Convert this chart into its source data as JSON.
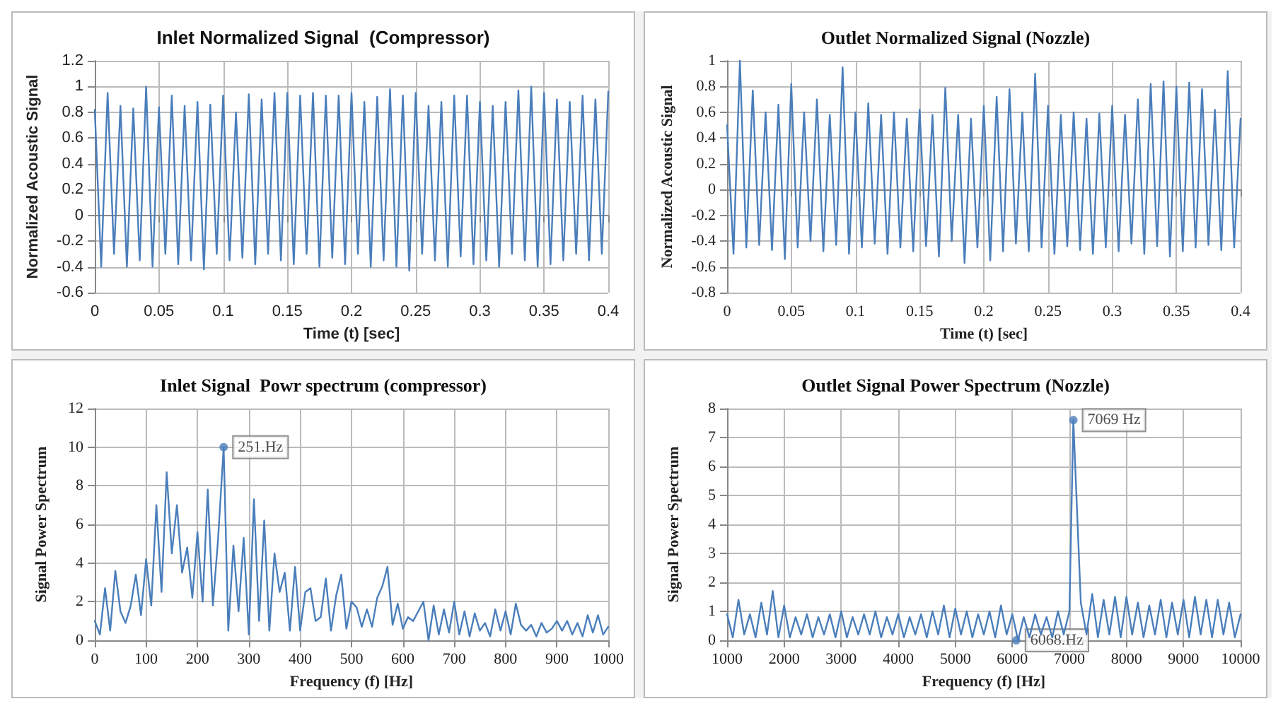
{
  "chart_data": [
    {
      "type": "line",
      "title": "Inlet Normalized Signal  (Compressor)",
      "xlabel": "Time (t) [sec]",
      "ylabel": "Normalized Acoustic Signal",
      "xlim": [
        0,
        0.4
      ],
      "xticks": [
        0,
        0.05,
        0.1,
        0.15,
        0.2,
        0.25,
        0.3,
        0.35,
        0.4
      ],
      "ylim": [
        -0.6,
        1.2
      ],
      "yticks": [
        -0.6,
        -0.4,
        -0.2,
        0,
        0.2,
        0.4,
        0.6,
        0.8,
        1,
        1.2
      ],
      "grid": true,
      "x": [
        0,
        0.005,
        0.01,
        0.015,
        0.02,
        0.025,
        0.03,
        0.035,
        0.04,
        0.045,
        0.05,
        0.055,
        0.06,
        0.065,
        0.07,
        0.075,
        0.08,
        0.085,
        0.09,
        0.095,
        0.1,
        0.105,
        0.11,
        0.115,
        0.12,
        0.125,
        0.13,
        0.135,
        0.14,
        0.145,
        0.15,
        0.155,
        0.16,
        0.165,
        0.17,
        0.175,
        0.18,
        0.185,
        0.19,
        0.195,
        0.2,
        0.205,
        0.21,
        0.215,
        0.22,
        0.225,
        0.23,
        0.235,
        0.24,
        0.245,
        0.25,
        0.255,
        0.26,
        0.265,
        0.27,
        0.275,
        0.28,
        0.285,
        0.29,
        0.295,
        0.3,
        0.305,
        0.31,
        0.315,
        0.32,
        0.325,
        0.33,
        0.335,
        0.34,
        0.345,
        0.35,
        0.355,
        0.36,
        0.365,
        0.37,
        0.375,
        0.38,
        0.385,
        0.39,
        0.395,
        0.4
      ],
      "series": [
        {
          "color": "#4a7ebb",
          "values": [
            0.82,
            -0.4,
            0.95,
            -0.3,
            0.85,
            -0.4,
            0.83,
            -0.35,
            1.0,
            -0.4,
            0.84,
            -0.3,
            0.93,
            -0.38,
            0.85,
            -0.35,
            0.88,
            -0.42,
            0.86,
            -0.3,
            0.93,
            -0.35,
            0.8,
            -0.33,
            0.94,
            -0.38,
            0.9,
            -0.3,
            0.95,
            -0.35,
            0.95,
            -0.38,
            0.93,
            -0.3,
            0.95,
            -0.4,
            0.93,
            -0.33,
            0.93,
            -0.38,
            0.95,
            -0.3,
            0.88,
            -0.4,
            0.92,
            -0.35,
            0.98,
            -0.4,
            0.93,
            -0.43,
            0.95,
            -0.3,
            0.85,
            -0.35,
            0.88,
            -0.4,
            0.93,
            -0.32,
            0.93,
            -0.38,
            0.88,
            -0.35,
            0.85,
            -0.4,
            0.88,
            -0.3,
            0.97,
            -0.35,
            1.0,
            -0.4,
            0.95,
            -0.38,
            0.9,
            -0.35,
            0.88,
            -0.3,
            0.93,
            -0.35,
            0.9,
            -0.3,
            0.96
          ]
        }
      ]
    },
    {
      "type": "line",
      "title": "Outlet Normalized Signal (Nozzle)",
      "xlabel": "Time (t) [sec]",
      "ylabel": "Normalized Acoustic Signal",
      "xlim": [
        0,
        0.4
      ],
      "xticks": [
        0,
        0.05,
        0.1,
        0.15,
        0.2,
        0.25,
        0.3,
        0.35,
        0.4
      ],
      "ylim": [
        -0.8,
        1
      ],
      "yticks": [
        -0.8,
        -0.6,
        -0.4,
        -0.2,
        0,
        0.2,
        0.4,
        0.6,
        0.8,
        1
      ],
      "grid": true,
      "x": [
        0,
        0.005,
        0.01,
        0.015,
        0.02,
        0.025,
        0.03,
        0.035,
        0.04,
        0.045,
        0.05,
        0.055,
        0.06,
        0.065,
        0.07,
        0.075,
        0.08,
        0.085,
        0.09,
        0.095,
        0.1,
        0.105,
        0.11,
        0.115,
        0.12,
        0.125,
        0.13,
        0.135,
        0.14,
        0.145,
        0.15,
        0.155,
        0.16,
        0.165,
        0.17,
        0.175,
        0.18,
        0.185,
        0.19,
        0.195,
        0.2,
        0.205,
        0.21,
        0.215,
        0.22,
        0.225,
        0.23,
        0.235,
        0.24,
        0.245,
        0.25,
        0.255,
        0.26,
        0.265,
        0.27,
        0.275,
        0.28,
        0.285,
        0.29,
        0.295,
        0.3,
        0.305,
        0.31,
        0.315,
        0.32,
        0.325,
        0.33,
        0.335,
        0.34,
        0.345,
        0.35,
        0.355,
        0.36,
        0.365,
        0.37,
        0.375,
        0.38,
        0.385,
        0.39,
        0.395,
        0.4
      ],
      "series": [
        {
          "color": "#4a7ebb",
          "values": [
            0.5,
            -0.5,
            1.0,
            -0.45,
            0.77,
            -0.43,
            0.6,
            -0.47,
            0.66,
            -0.54,
            0.82,
            -0.45,
            0.6,
            -0.4,
            0.7,
            -0.48,
            0.58,
            -0.43,
            0.95,
            -0.5,
            0.6,
            -0.45,
            0.67,
            -0.42,
            0.58,
            -0.5,
            0.6,
            -0.45,
            0.55,
            -0.48,
            0.62,
            -0.44,
            0.58,
            -0.52,
            0.79,
            -0.4,
            0.58,
            -0.57,
            0.55,
            -0.45,
            0.65,
            -0.55,
            0.72,
            -0.48,
            0.78,
            -0.42,
            0.6,
            -0.48,
            0.9,
            -0.45,
            0.65,
            -0.5,
            0.58,
            -0.44,
            0.6,
            -0.47,
            0.55,
            -0.5,
            0.59,
            -0.45,
            0.65,
            -0.48,
            0.58,
            -0.42,
            0.7,
            -0.5,
            0.82,
            -0.44,
            0.84,
            -0.52,
            0.8,
            -0.48,
            0.83,
            -0.45,
            0.78,
            -0.43,
            0.62,
            -0.47,
            0.92,
            -0.45,
            0.55
          ]
        }
      ]
    },
    {
      "type": "line",
      "title": "Inlet Signal  Powr spectrum (compressor)",
      "xlabel": "Frequency (f) [Hz]",
      "ylabel": "Signal Power Spectrum",
      "xlim": [
        0,
        1000
      ],
      "xticks": [
        0,
        100,
        200,
        300,
        400,
        500,
        600,
        700,
        800,
        900,
        1000
      ],
      "ylim": [
        0,
        12
      ],
      "yticks": [
        0,
        2,
        4,
        6,
        8,
        10,
        12
      ],
      "grid": true,
      "annotations": [
        {
          "text": "251.Hz",
          "x": 251,
          "y": 10
        }
      ],
      "x": [
        0,
        10,
        20,
        30,
        40,
        50,
        60,
        70,
        80,
        90,
        100,
        110,
        120,
        130,
        140,
        150,
        160,
        170,
        180,
        190,
        200,
        210,
        220,
        230,
        240,
        251,
        260,
        270,
        280,
        290,
        300,
        310,
        320,
        330,
        340,
        350,
        360,
        370,
        380,
        390,
        400,
        410,
        420,
        430,
        440,
        450,
        460,
        470,
        480,
        490,
        500,
        510,
        520,
        530,
        540,
        550,
        560,
        570,
        580,
        590,
        600,
        610,
        620,
        630,
        640,
        650,
        660,
        670,
        680,
        690,
        700,
        710,
        720,
        730,
        740,
        750,
        760,
        770,
        780,
        790,
        800,
        810,
        820,
        830,
        840,
        850,
        860,
        870,
        880,
        890,
        900,
        910,
        920,
        930,
        940,
        950,
        960,
        970,
        980,
        990,
        1000
      ],
      "series": [
        {
          "color": "#4a7ebb",
          "values": [
            1.0,
            0.3,
            2.7,
            0.5,
            3.6,
            1.5,
            0.9,
            1.8,
            3.4,
            1.3,
            4.2,
            1.8,
            7.0,
            2.5,
            8.7,
            4.5,
            7.0,
            3.5,
            4.8,
            2.2,
            5.6,
            2.0,
            7.8,
            1.8,
            5.2,
            10.0,
            0.5,
            4.9,
            1.5,
            5.3,
            0.3,
            7.3,
            1.0,
            6.2,
            0.5,
            4.5,
            2.5,
            3.5,
            0.5,
            3.8,
            0.5,
            2.5,
            2.7,
            1.0,
            1.2,
            3.2,
            0.5,
            2.3,
            3.4,
            0.6,
            2.0,
            1.7,
            0.7,
            1.6,
            0.7,
            2.2,
            2.8,
            3.8,
            0.8,
            1.9,
            0.6,
            1.2,
            1.0,
            1.5,
            2.0,
            0.0,
            1.8,
            0.3,
            1.6,
            0.4,
            2.0,
            0.3,
            1.5,
            0.2,
            1.4,
            0.5,
            0.9,
            0.2,
            1.6,
            0.5,
            1.5,
            0.3,
            1.9,
            0.8,
            0.5,
            0.8,
            0.2,
            0.9,
            0.4,
            0.6,
            1.0,
            0.5,
            1.0,
            0.3,
            0.9,
            0.2,
            1.3,
            0.4,
            1.3,
            0.3,
            0.7
          ]
        }
      ]
    },
    {
      "type": "line",
      "title": "Outlet Signal Power Spectrum (Nozzle)",
      "xlabel": "Frequency (f) [Hz]",
      "ylabel": "Signal Power Spectrum",
      "xlim": [
        1000,
        10000
      ],
      "xticks": [
        1000,
        2000,
        3000,
        4000,
        5000,
        6000,
        7000,
        8000,
        9000,
        10000
      ],
      "ylim": [
        0,
        8
      ],
      "yticks": [
        0,
        1,
        2,
        3,
        4,
        5,
        6,
        7,
        8
      ],
      "grid": true,
      "annotations": [
        {
          "text": "7069 Hz",
          "x": 7069,
          "y": 7.6
        },
        {
          "text": "6068.Hz",
          "x": 6068,
          "y": 0
        }
      ],
      "x": [
        1000,
        1100,
        1200,
        1300,
        1400,
        1500,
        1600,
        1700,
        1800,
        1900,
        2000,
        2100,
        2200,
        2300,
        2400,
        2500,
        2600,
        2700,
        2800,
        2900,
        3000,
        3100,
        3200,
        3300,
        3400,
        3500,
        3600,
        3700,
        3800,
        3900,
        4000,
        4100,
        4200,
        4300,
        4400,
        4500,
        4600,
        4700,
        4800,
        4900,
        5000,
        5100,
        5200,
        5300,
        5400,
        5500,
        5600,
        5700,
        5800,
        5900,
        6000,
        6100,
        6200,
        6300,
        6400,
        6500,
        6600,
        6700,
        6800,
        6900,
        7000,
        7069,
        7200,
        7300,
        7400,
        7500,
        7600,
        7700,
        7800,
        7900,
        8000,
        8100,
        8200,
        8300,
        8400,
        8500,
        8600,
        8700,
        8800,
        8900,
        9000,
        9100,
        9200,
        9300,
        9400,
        9500,
        9600,
        9700,
        9800,
        9900,
        10000
      ],
      "series": [
        {
          "color": "#4a7ebb",
          "values": [
            0.9,
            0.1,
            1.4,
            0.2,
            0.9,
            0.1,
            1.3,
            0.2,
            1.7,
            0.1,
            1.2,
            0.1,
            0.8,
            0.2,
            0.9,
            0.1,
            0.8,
            0.2,
            0.9,
            0.1,
            1.0,
            0.1,
            0.8,
            0.2,
            0.9,
            0.2,
            1.0,
            0.1,
            0.8,
            0.2,
            0.9,
            0.1,
            0.8,
            0.2,
            0.9,
            0.1,
            1.0,
            0.2,
            1.2,
            0.1,
            1.1,
            0.2,
            1.0,
            0.1,
            0.9,
            0.2,
            1.0,
            0.1,
            1.2,
            0.2,
            0.9,
            0.0,
            0.8,
            0.1,
            0.9,
            0.2,
            0.8,
            0.1,
            1.0,
            0.2,
            1.0,
            7.6,
            1.3,
            0.2,
            1.6,
            0.1,
            1.4,
            0.2,
            1.5,
            0.1,
            1.5,
            0.2,
            1.3,
            0.1,
            1.2,
            0.2,
            1.4,
            0.1,
            1.3,
            0.2,
            1.4,
            0.1,
            1.5,
            0.2,
            1.4,
            0.1,
            1.4,
            0.2,
            1.3,
            0.1,
            0.9
          ]
        }
      ]
    }
  ]
}
